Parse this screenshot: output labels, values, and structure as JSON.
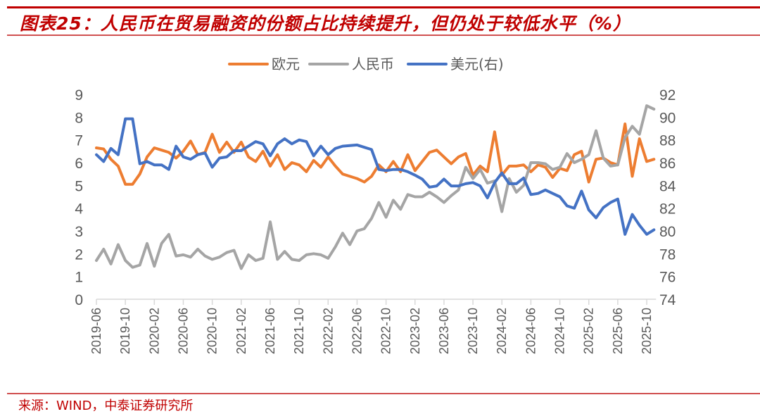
{
  "header": {
    "title": "图表25：人民币在贸易融资的份额占比持续提升，但仍处于较低水平（%）"
  },
  "footer": {
    "source": "来源：WIND，中泰证券研究所"
  },
  "chart_data": {
    "type": "line",
    "title": "图表25：人民币在贸易融资的份额占比持续提升，但仍处于较低水平（%）",
    "legend_position": "top",
    "grid": false,
    "y_left": {
      "range": [
        0,
        9
      ],
      "ticks": [
        0,
        1,
        2,
        3,
        4,
        5,
        6,
        7,
        8,
        9
      ]
    },
    "y_right": {
      "range": [
        74,
        92
      ],
      "ticks": [
        74,
        76,
        78,
        80,
        82,
        84,
        86,
        88,
        90,
        92
      ]
    },
    "x_tick_labels": [
      "2019-06",
      "2019-10",
      "2020-02",
      "2020-06",
      "2020-10",
      "2021-02",
      "2021-06",
      "2021-10",
      "2022-02",
      "2022-06",
      "2022-10",
      "2023-02",
      "2023-06",
      "2023-10",
      "2024-02",
      "2024-06",
      "2024-10",
      "2025-02",
      "2025-06",
      "2025-10"
    ],
    "categories": [
      "2019-06",
      "2019-07",
      "2019-08",
      "2019-09",
      "2019-10",
      "2019-11",
      "2019-12",
      "2020-01",
      "2020-02",
      "2020-03",
      "2020-04",
      "2020-05",
      "2020-06",
      "2020-07",
      "2020-08",
      "2020-09",
      "2020-10",
      "2020-11",
      "2020-12",
      "2021-01",
      "2021-02",
      "2021-03",
      "2021-04",
      "2021-05",
      "2021-06",
      "2021-07",
      "2021-08",
      "2021-09",
      "2021-10",
      "2021-11",
      "2021-12",
      "2022-01",
      "2022-02",
      "2022-03",
      "2022-04",
      "2022-05",
      "2022-06",
      "2022-07",
      "2022-08",
      "2022-09",
      "2022-10",
      "2022-11",
      "2022-12",
      "2023-01",
      "2023-02",
      "2023-03",
      "2023-04",
      "2023-05",
      "2023-06",
      "2023-07",
      "2023-08",
      "2023-09",
      "2023-10",
      "2023-11",
      "2023-12",
      "2024-01",
      "2024-02",
      "2024-03",
      "2024-04",
      "2024-05",
      "2024-06",
      "2024-07",
      "2024-08",
      "2024-09",
      "2024-10",
      "2024-11",
      "2024-12",
      "2025-01",
      "2025-02",
      "2025-03",
      "2025-04",
      "2025-05",
      "2025-06",
      "2025-07",
      "2025-08",
      "2025-09",
      "2025-10",
      "2025-11"
    ],
    "series": [
      {
        "name": "欧元",
        "axis": "left",
        "color": "#ED7D31",
        "values": [
          6.65,
          6.6,
          6.15,
          5.85,
          5.05,
          5.05,
          5.5,
          6.25,
          6.65,
          6.55,
          6.45,
          6.2,
          6.5,
          6.95,
          6.35,
          6.45,
          7.25,
          6.45,
          6.9,
          6.45,
          6.9,
          6.25,
          6.05,
          6.5,
          5.85,
          6.35,
          5.7,
          6.0,
          5.9,
          5.6,
          6.1,
          5.8,
          6.25,
          5.85,
          5.5,
          5.4,
          5.3,
          5.15,
          5.4,
          5.9,
          5.6,
          6.05,
          5.6,
          6.35,
          5.65,
          6.05,
          6.45,
          6.55,
          6.25,
          5.95,
          6.25,
          6.4,
          5.45,
          5.85,
          5.6,
          7.35,
          5.45,
          5.85,
          5.85,
          5.9,
          5.6,
          5.9,
          5.8,
          5.35,
          5.75,
          5.65,
          6.35,
          6.5,
          5.15,
          6.15,
          6.2,
          6.0,
          5.9,
          7.7,
          5.4,
          7.05,
          6.05,
          6.15
        ]
      },
      {
        "name": "人民币",
        "axis": "left",
        "color": "#A5A5A5",
        "values": [
          1.7,
          2.2,
          1.55,
          2.4,
          1.7,
          1.4,
          1.5,
          2.45,
          1.45,
          2.45,
          2.85,
          1.9,
          1.95,
          1.85,
          2.2,
          1.9,
          1.75,
          1.85,
          2.05,
          2.15,
          1.35,
          1.95,
          1.7,
          1.8,
          3.4,
          1.75,
          2.1,
          1.75,
          1.7,
          1.95,
          2.0,
          1.95,
          1.8,
          2.3,
          2.9,
          2.4,
          3.0,
          3.1,
          3.55,
          4.25,
          3.6,
          4.35,
          3.95,
          4.6,
          4.5,
          4.5,
          4.7,
          4.5,
          4.25,
          4.55,
          4.8,
          5.8,
          5.3,
          5.7,
          5.1,
          5.2,
          3.85,
          5.3,
          4.7,
          5.0,
          6.0,
          6.0,
          5.95,
          5.7,
          5.8,
          6.4,
          6.0,
          6.15,
          6.35,
          7.4,
          6.2,
          5.85,
          5.9,
          7.1,
          7.6,
          7.25,
          8.5,
          8.35
        ]
      },
      {
        "name": "美元(右)",
        "axis": "right",
        "color": "#4472C4",
        "values": [
          86.7,
          86.1,
          87.25,
          86.7,
          89.85,
          89.85,
          85.9,
          86.1,
          85.8,
          85.8,
          85.4,
          87.45,
          86.5,
          86.3,
          86.7,
          86.85,
          85.6,
          86.4,
          86.5,
          87.05,
          87.05,
          87.45,
          87.85,
          87.65,
          86.6,
          87.65,
          88.1,
          87.65,
          88.0,
          87.85,
          86.6,
          87.45,
          86.7,
          87.25,
          87.45,
          87.5,
          87.55,
          87.35,
          87.15,
          85.4,
          85.3,
          85.4,
          85.4,
          85.2,
          84.9,
          84.55,
          83.85,
          83.95,
          84.55,
          83.95,
          83.95,
          84.15,
          84.25,
          83.95,
          82.9,
          84.25,
          85.1,
          84.15,
          84.15,
          84.65,
          83.2,
          83.3,
          83.6,
          83.3,
          83.0,
          82.2,
          82.0,
          83.5,
          81.85,
          81.15,
          82.05,
          82.5,
          82.8,
          79.7,
          81.45,
          80.5,
          79.7,
          80.1
        ]
      }
    ]
  }
}
